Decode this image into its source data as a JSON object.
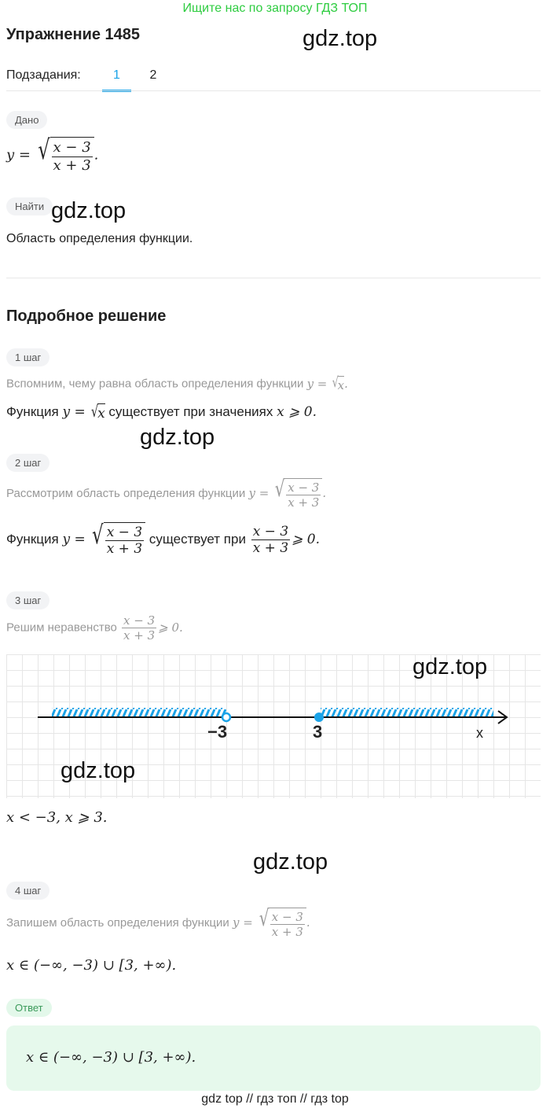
{
  "banner": "Ищите нас по запросу ГДЗ ТОП",
  "title": "Упражнение 1485",
  "watermark": "gdz.top",
  "subtasks": {
    "label": "Подзадания:",
    "tabs": [
      "1",
      "2"
    ],
    "active": 0
  },
  "given": {
    "chip": "Дано",
    "lhs": "y =",
    "num": "x − 3",
    "den": "x + 3",
    "end": "."
  },
  "find": {
    "chip": "Найти",
    "text": "Область определения функции."
  },
  "solution_title": "Подробное решение",
  "steps": [
    {
      "chip": "1 шаг",
      "hint": "Вспомним, чему равна область определения функции",
      "hint_math": "y = ",
      "hint_rad": "x",
      "hint_end": ".",
      "text1": "Функция",
      "m1": "y = ",
      "rad": "x",
      "text2": "существует при значениях",
      "m2": "x ⩾ 0."
    },
    {
      "chip": "2 шаг",
      "hint": "Рассмотрим область определения функции",
      "hint_math": "y = ",
      "num": "x − 3",
      "den": "x + 3",
      "text1": "Функция",
      "m1": "y = ",
      "text2": "существует при",
      "m2": "⩾ 0."
    },
    {
      "chip": "3 шаг",
      "hint": "Решим неравенство",
      "num": "x − 3",
      "den": "x + 3",
      "m2": "⩾ 0.",
      "result": "x < −3,  x ⩾ 3."
    },
    {
      "chip": "4 шаг",
      "hint": "Запишем область определения функции",
      "hint_math": "y = ",
      "num": "x − 3",
      "den": "x + 3",
      "result": "x ∈ (−∞,  −3) ∪ [3,  +∞)."
    }
  ],
  "number_line": {
    "points": [
      {
        "label": "−3",
        "value": -3,
        "filled": false
      },
      {
        "label": "3",
        "value": 3,
        "filled": true
      }
    ],
    "axis_label": "x",
    "accent": "#1aa3e8"
  },
  "answer": {
    "chip": "Ответ",
    "text": "x ∈ (−∞,  −3) ∪ [3,  +∞)."
  },
  "footer": "gdz top  //  гдз топ  //  гдз top"
}
